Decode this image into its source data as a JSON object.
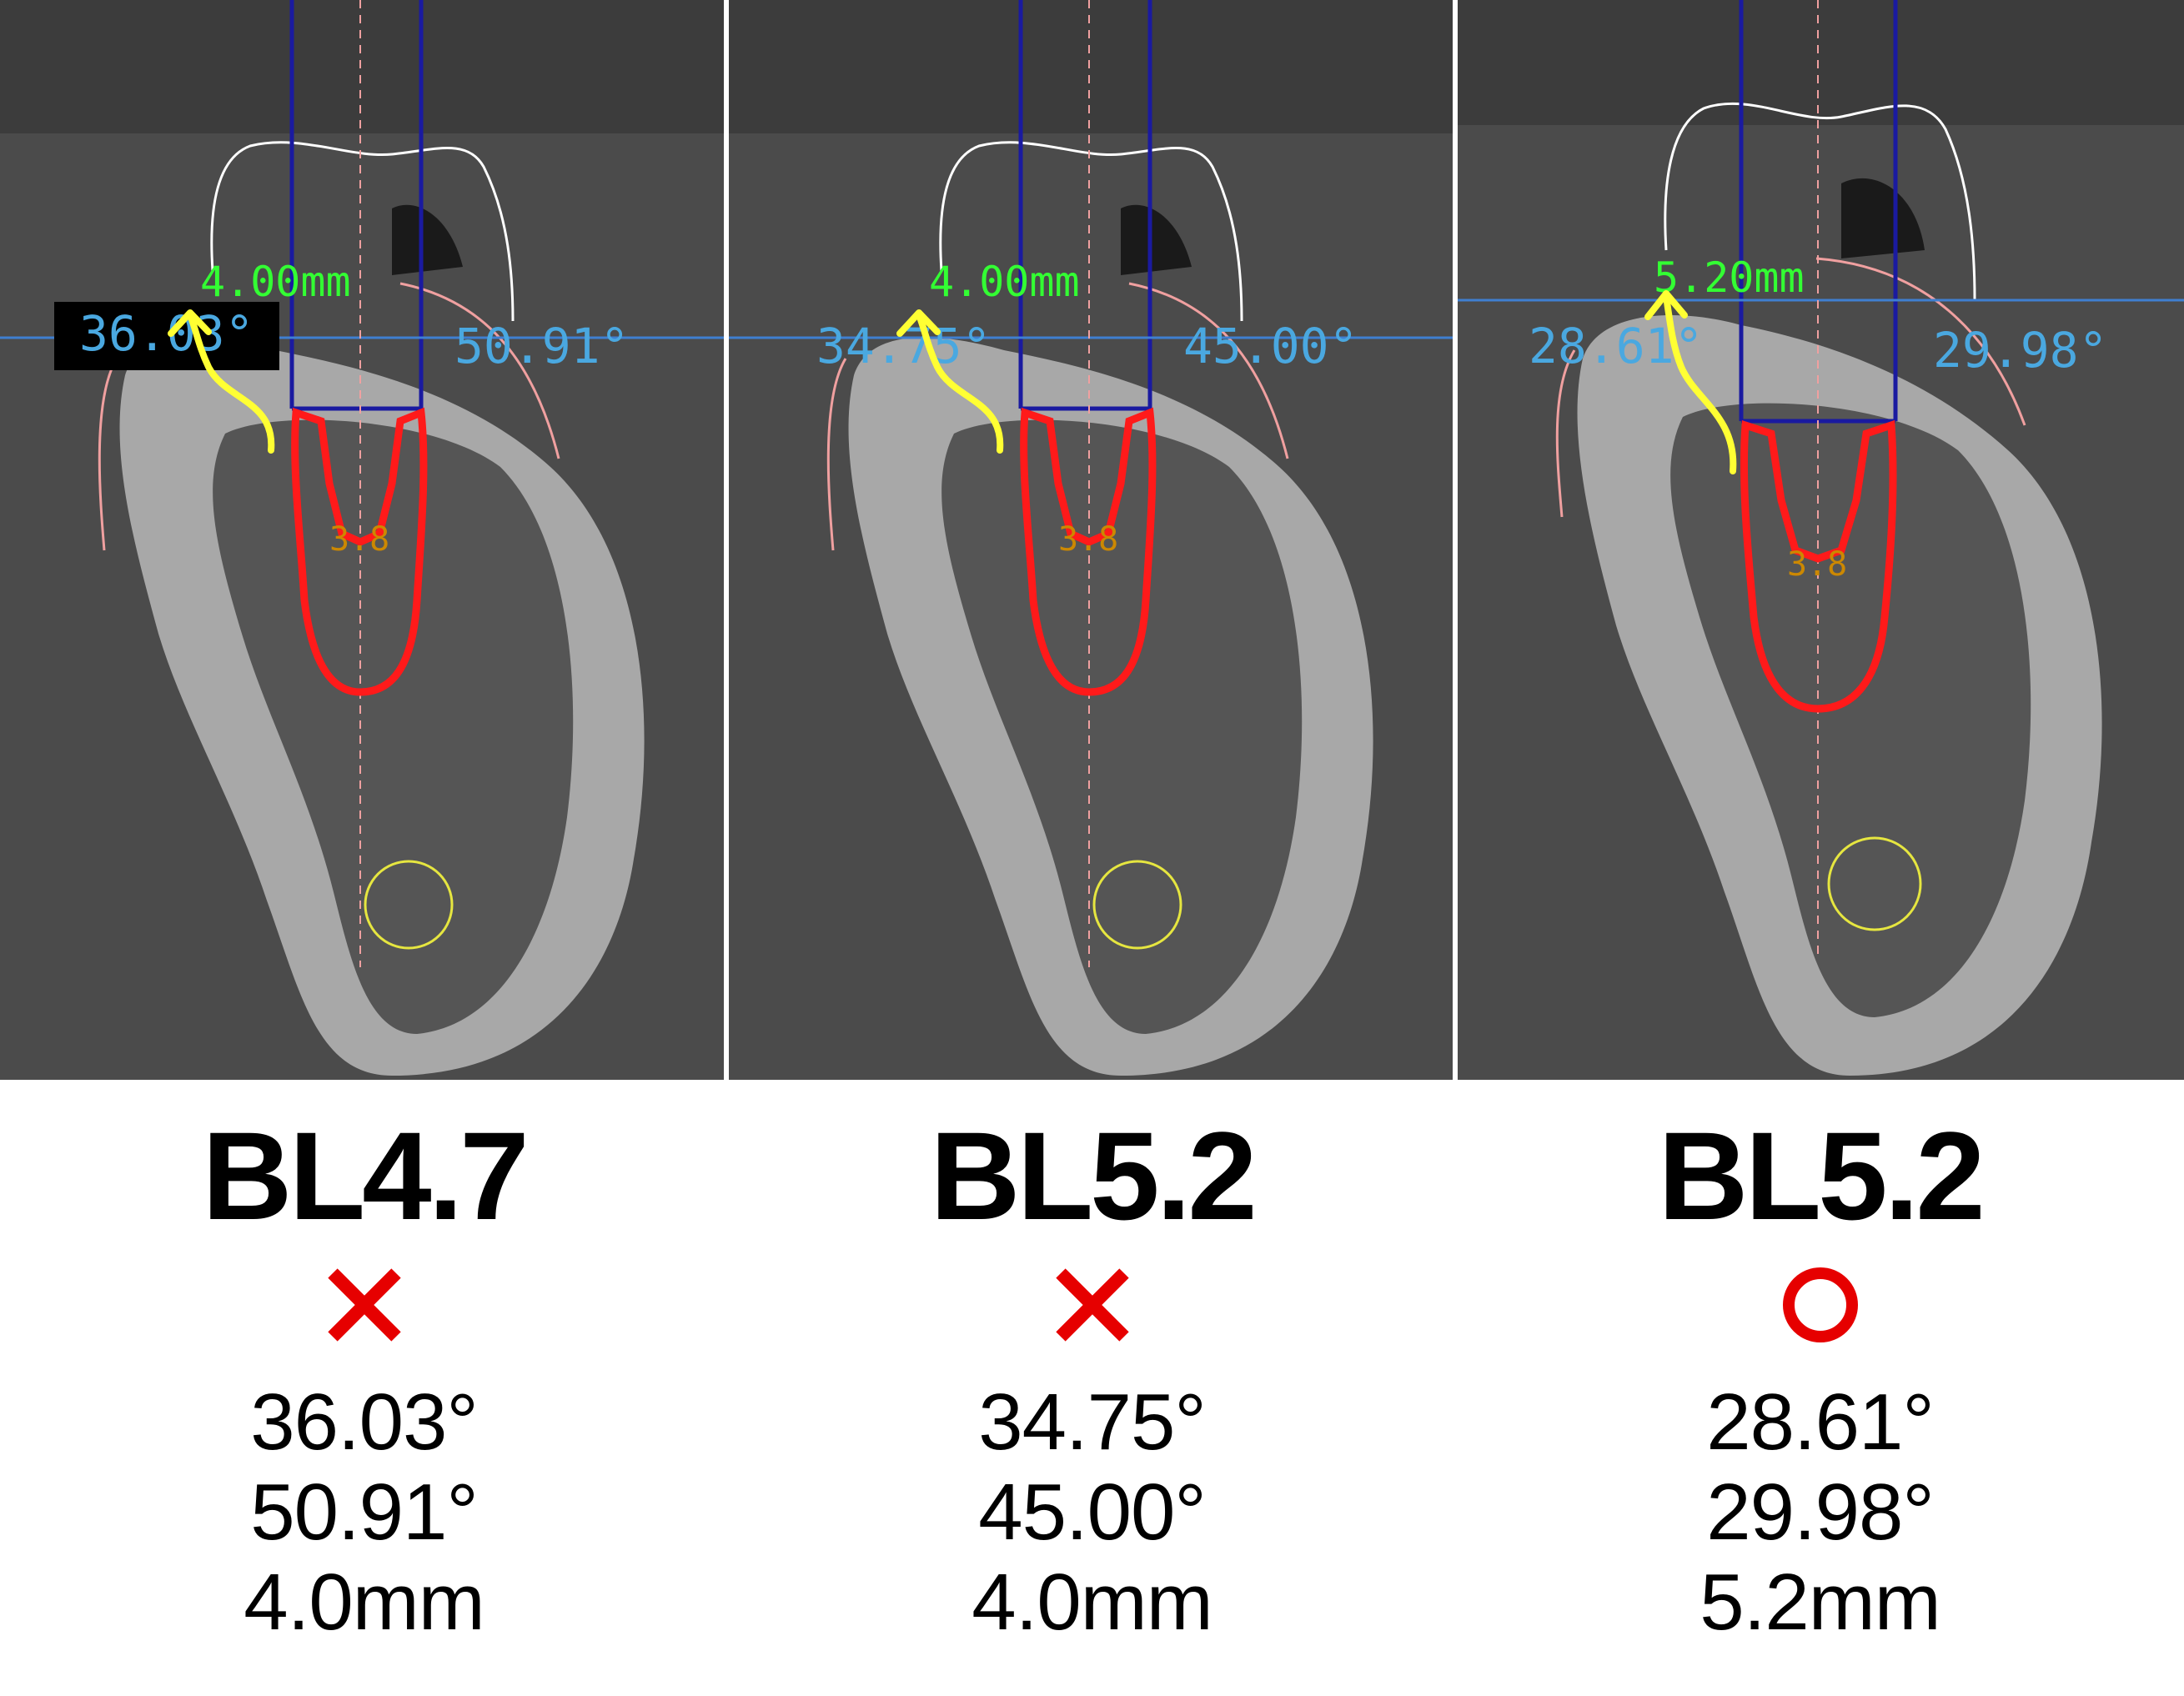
{
  "panels": [
    {
      "overlay": {
        "left_angle": "36.03°",
        "right_angle": "50.91°",
        "width": "4.00mm",
        "size": "3.8"
      },
      "caption": {
        "model": "BL4.7",
        "result": "×",
        "result_icon": "cross-mark",
        "values": [
          "36.03°",
          "50.91°",
          "4.0mm"
        ]
      }
    },
    {
      "overlay": {
        "left_angle": "34.75°",
        "right_angle": "45.00°",
        "width": "4.00mm",
        "size": "3.8"
      },
      "caption": {
        "model": "BL5.2",
        "result": "×",
        "result_icon": "cross-mark",
        "values": [
          "34.75°",
          "45.00°",
          "4.0mm"
        ]
      }
    },
    {
      "overlay": {
        "left_angle": "28.61°",
        "right_angle": "29.98°",
        "width": "5.20mm",
        "size": "3.8"
      },
      "caption": {
        "model": "BL5.2",
        "result": "○",
        "result_icon": "circle-mark",
        "values": [
          "28.61°",
          "29.98°",
          "5.2mm"
        ]
      }
    }
  ],
  "colors": {
    "implant_outline": "#ff1a1a",
    "arrow": "#ffff33",
    "measure_green": "#33ff33",
    "angle_text": "#4aa8e0",
    "guide_blue": "#1a1aa0",
    "mark_red": "#e60000"
  }
}
